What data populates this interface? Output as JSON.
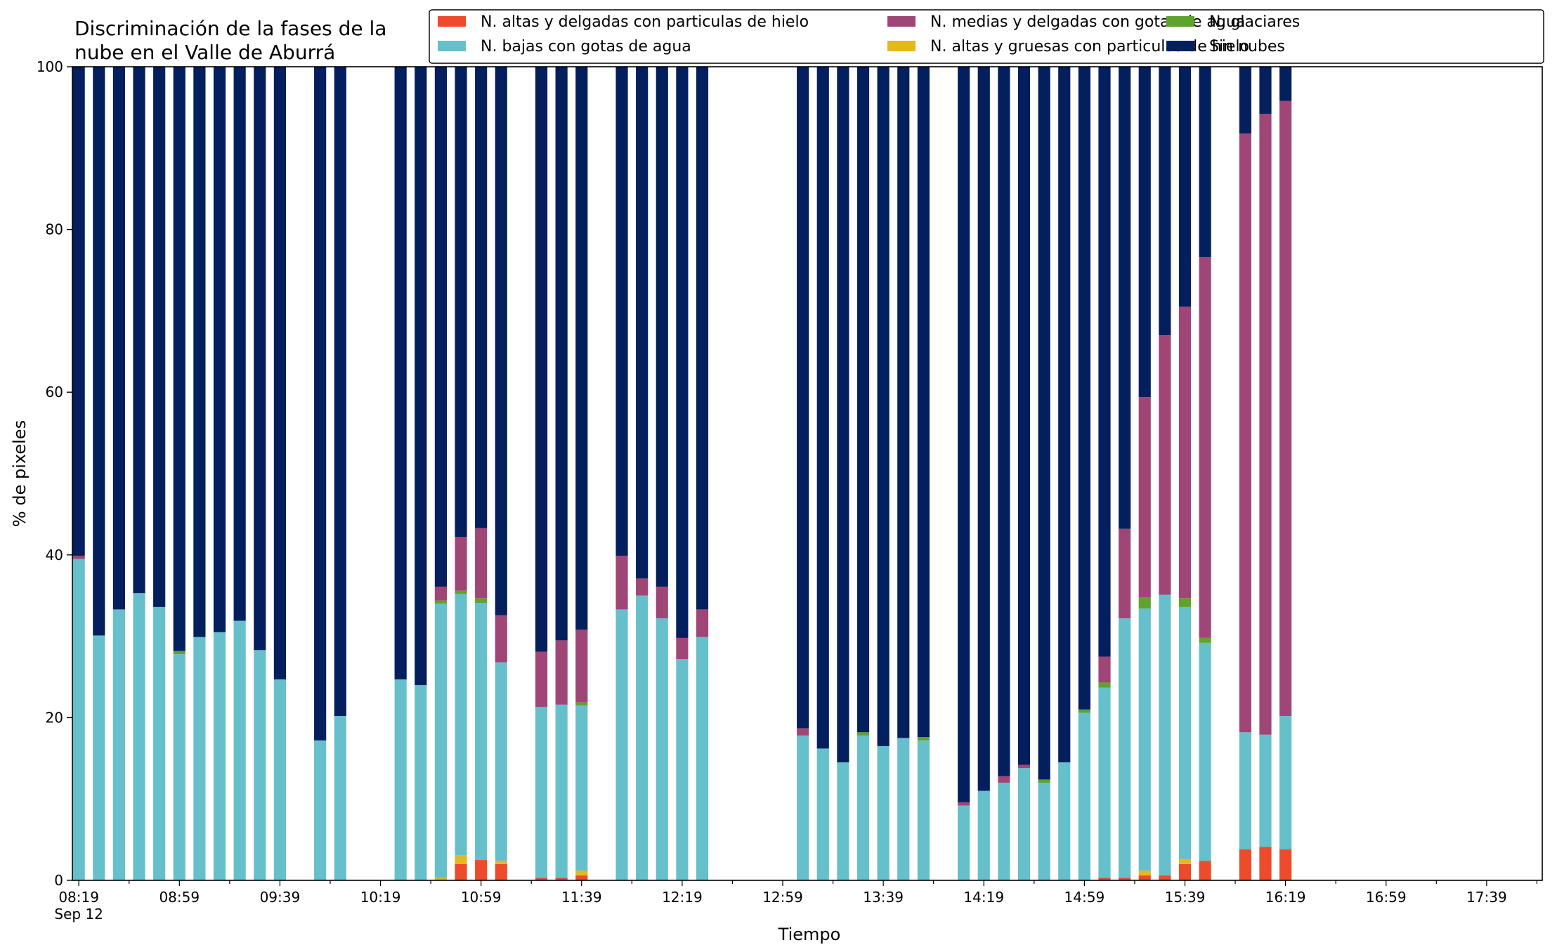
{
  "chart_data": {
    "type": "bar",
    "stacked": true,
    "title_line1": "Discriminación de la fases de la",
    "title_line2": "nube en el Valle de Aburrá",
    "xlabel": "Tiempo",
    "ylabel": "% de pixeles",
    "ylim": [
      0,
      100
    ],
    "yticks": [
      "0",
      "20",
      "40",
      "60",
      "80",
      "100"
    ],
    "xtick_labels": [
      "08:19",
      "08:59",
      "09:39",
      "10:19",
      "10:59",
      "11:39",
      "12:19",
      "12:59",
      "13:39",
      "14:19",
      "14:59",
      "15:39",
      "16:19",
      "16:59",
      "17:39"
    ],
    "xtick_date": "Sep 12",
    "legend_position": "top-right",
    "x_start": "08:19",
    "x_end": "18:00",
    "bar_interval_minutes": 8,
    "series": [
      {
        "name": "N. altas y delgadas con particulas de hielo",
        "color": "#ee4a2c"
      },
      {
        "name": "N. altas y gruesas con particulas de hielo",
        "color": "#e6b81c"
      },
      {
        "name": "N. bajas con gotas de agua",
        "color": "#66c0cc"
      },
      {
        "name": "N. glaciares",
        "color": "#5fa22c"
      },
      {
        "name": "N. medias y delgadas con gotas de agua",
        "color": "#a04677"
      },
      {
        "name": "Sin nubes",
        "color": "#041f5e"
      }
    ],
    "bars": [
      {
        "time": "08:19",
        "values": [
          0,
          0,
          39.5,
          0,
          0.4,
          60.1
        ]
      },
      {
        "time": "08:27",
        "values": [
          0,
          0,
          30.1,
          0,
          0,
          69.9
        ]
      },
      {
        "time": "08:35",
        "values": [
          0,
          0,
          33.3,
          0,
          0,
          66.7
        ]
      },
      {
        "time": "08:43",
        "values": [
          0,
          0,
          35.3,
          0,
          0,
          64.7
        ]
      },
      {
        "time": "08:51",
        "values": [
          0,
          0,
          33.6,
          0,
          0,
          66.4
        ]
      },
      {
        "time": "08:59",
        "values": [
          0,
          0,
          27.8,
          0.4,
          0,
          71.8
        ]
      },
      {
        "time": "09:07",
        "values": [
          0,
          0,
          29.9,
          0,
          0,
          70.1
        ]
      },
      {
        "time": "09:15",
        "values": [
          0,
          0,
          30.5,
          0,
          0,
          69.5
        ]
      },
      {
        "time": "09:23",
        "values": [
          0,
          0,
          31.9,
          0,
          0,
          68.1
        ]
      },
      {
        "time": "09:31",
        "values": [
          0,
          0,
          28.3,
          0,
          0,
          71.7
        ]
      },
      {
        "time": "09:39",
        "values": [
          0,
          0,
          24.7,
          0,
          0,
          75.3
        ]
      },
      {
        "time": "09:55",
        "values": [
          0,
          0,
          17.2,
          0,
          0,
          82.8
        ]
      },
      {
        "time": "10:03",
        "values": [
          0,
          0,
          20.2,
          0,
          0,
          79.8
        ]
      },
      {
        "time": "10:27",
        "values": [
          0,
          0,
          24.7,
          0,
          0,
          75.3
        ]
      },
      {
        "time": "10:35",
        "values": [
          0,
          0,
          24.0,
          0,
          0,
          76.0
        ]
      },
      {
        "time": "10:43",
        "values": [
          0,
          0.3,
          33.7,
          0.4,
          1.7,
          63.9
        ]
      },
      {
        "time": "10:51",
        "values": [
          2.0,
          1.1,
          32.1,
          0.4,
          6.6,
          57.8
        ]
      },
      {
        "time": "10:59",
        "values": [
          2.5,
          0,
          31.6,
          0.6,
          8.6,
          56.7
        ]
      },
      {
        "time": "11:07",
        "values": [
          2.0,
          0.4,
          24.4,
          0,
          5.8,
          67.4
        ]
      },
      {
        "time": "11:23",
        "values": [
          0.3,
          0,
          21.0,
          0,
          6.8,
          71.9
        ]
      },
      {
        "time": "11:31",
        "values": [
          0.3,
          0,
          21.3,
          0,
          7.9,
          70.5
        ]
      },
      {
        "time": "11:39",
        "values": [
          0.6,
          0.6,
          20.3,
          0.4,
          8.9,
          69.2
        ]
      },
      {
        "time": "11:55",
        "values": [
          0,
          0,
          33.3,
          0,
          6.6,
          60.1
        ]
      },
      {
        "time": "12:03",
        "values": [
          0,
          0,
          35.0,
          0,
          2.1,
          62.9
        ]
      },
      {
        "time": "12:11",
        "values": [
          0,
          0,
          32.2,
          0,
          3.9,
          63.9
        ]
      },
      {
        "time": "12:19",
        "values": [
          0,
          0,
          27.2,
          0,
          2.6,
          70.2
        ]
      },
      {
        "time": "12:27",
        "values": [
          0,
          0,
          29.9,
          0,
          3.4,
          66.7
        ]
      },
      {
        "time": "13:07",
        "values": [
          0,
          0,
          17.8,
          0,
          0.9,
          81.3
        ]
      },
      {
        "time": "13:15",
        "values": [
          0,
          0,
          16.2,
          0,
          0,
          83.8
        ]
      },
      {
        "time": "13:23",
        "values": [
          0,
          0,
          14.5,
          0,
          0,
          85.5
        ]
      },
      {
        "time": "13:31",
        "values": [
          0,
          0,
          17.8,
          0.4,
          0,
          81.8
        ]
      },
      {
        "time": "13:39",
        "values": [
          0,
          0,
          16.5,
          0,
          0,
          83.5
        ]
      },
      {
        "time": "13:47",
        "values": [
          0,
          0,
          17.5,
          0,
          0,
          82.5
        ]
      },
      {
        "time": "13:55",
        "values": [
          0,
          0,
          17.2,
          0.4,
          0,
          82.4
        ]
      },
      {
        "time": "14:11",
        "values": [
          0,
          0,
          9.2,
          0,
          0.4,
          90.4
        ]
      },
      {
        "time": "14:19",
        "values": [
          0,
          0,
          11.0,
          0,
          0,
          89.0
        ]
      },
      {
        "time": "14:27",
        "values": [
          0,
          0,
          12.0,
          0,
          0.8,
          87.2
        ]
      },
      {
        "time": "14:35",
        "values": [
          0,
          0,
          13.8,
          0,
          0.4,
          85.8
        ]
      },
      {
        "time": "14:43",
        "values": [
          0,
          0,
          12.0,
          0.4,
          0,
          87.6
        ]
      },
      {
        "time": "14:51",
        "values": [
          0,
          0,
          14.5,
          0,
          0,
          85.5
        ]
      },
      {
        "time": "14:59",
        "values": [
          0,
          0,
          20.6,
          0.4,
          0,
          79.0
        ]
      },
      {
        "time": "15:07",
        "values": [
          0.3,
          0,
          23.4,
          0.6,
          3.2,
          72.5
        ]
      },
      {
        "time": "15:15",
        "values": [
          0.3,
          0,
          31.9,
          0,
          11.0,
          56.8
        ]
      },
      {
        "time": "15:23",
        "values": [
          0.6,
          0.6,
          32.2,
          1.4,
          24.6,
          40.6
        ]
      },
      {
        "time": "15:31",
        "values": [
          0.6,
          0,
          34.5,
          0,
          31.9,
          33.0
        ]
      },
      {
        "time": "15:39",
        "values": [
          2.0,
          0.6,
          31.0,
          1.1,
          35.8,
          29.5
        ]
      },
      {
        "time": "15:47",
        "values": [
          2.4,
          0,
          26.8,
          0.6,
          46.8,
          23.4
        ]
      },
      {
        "time": "16:03",
        "values": [
          3.8,
          0,
          14.4,
          0,
          73.6,
          8.2
        ]
      },
      {
        "time": "16:11",
        "values": [
          4.1,
          0,
          13.8,
          0,
          76.3,
          5.8
        ]
      },
      {
        "time": "16:19",
        "values": [
          3.8,
          0,
          16.4,
          0,
          75.6,
          4.2
        ]
      }
    ]
  }
}
